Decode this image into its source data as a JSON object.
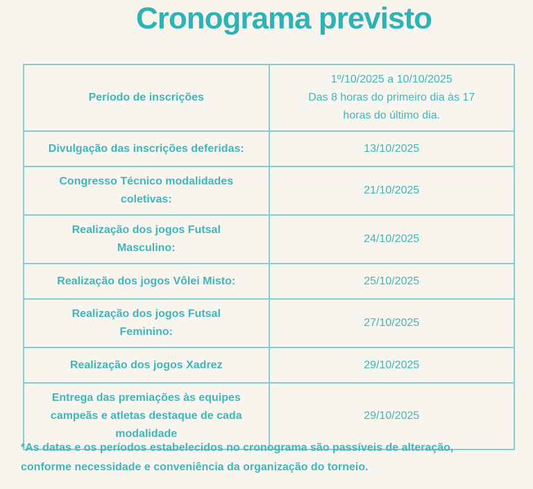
{
  "title": "Cronograma previsto",
  "colors": {
    "background": "#f8f5ee",
    "title_accent": "#2db3b6",
    "text_accent": "#41b5ba",
    "table_border": "#85cdd0"
  },
  "table": {
    "rows": [
      {
        "label": "Período de inscrições",
        "value": "1º/10/2025 a 10/10/2025\nDas 8 horas do primeiro dia às 17 horas do último dia."
      },
      {
        "label": "Divulgação das inscrições deferidas:",
        "value": "13/10/2025"
      },
      {
        "label": "Congresso Técnico modalidades coletivas:",
        "value": "21/10/2025"
      },
      {
        "label": "Realização dos jogos Futsal Masculino:",
        "value": "24/10/2025"
      },
      {
        "label": "Realização dos jogos Vôlei Misto:",
        "value": "25/10/2025"
      },
      {
        "label": "Realização dos jogos Futsal Feminino:",
        "value": "27/10/2025"
      },
      {
        "label": "Realização dos jogos Xadrez",
        "value": "29/10/2025"
      },
      {
        "label": "Entrega das premiações às equipes campeãs e atletas destaque de cada modalidade",
        "value": "29/10/2025"
      }
    ]
  },
  "footnote": "*As datas e os períodos estabelecidos no cronograma são passíveis de alteração, conforme necessidade e conveniência da organização do torneio."
}
